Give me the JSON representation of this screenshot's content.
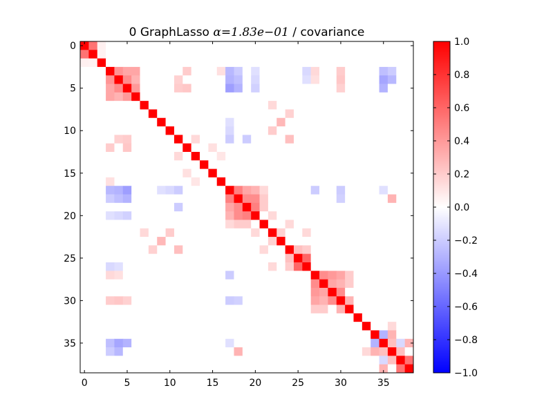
{
  "chart_data": {
    "type": "heatmap",
    "title": {
      "prefix": "0 GraphLasso ",
      "alpha_symbol": "α",
      "alpha_value": "=1.83e−01",
      "suffix": " / covariance"
    },
    "xlabel": "",
    "ylabel": "",
    "n": 39,
    "x_ticks": [
      "0",
      "5",
      "10",
      "15",
      "20",
      "25",
      "30",
      "35"
    ],
    "y_ticks": [
      "0",
      "5",
      "10",
      "15",
      "20",
      "25",
      "30",
      "35"
    ],
    "x_tick_values": [
      0,
      5,
      10,
      15,
      20,
      25,
      30,
      35
    ],
    "y_tick_values": [
      0,
      5,
      10,
      15,
      20,
      25,
      30,
      35
    ],
    "colormap": "bwr",
    "vmin": -1.0,
    "vmax": 1.0,
    "colorbar": {
      "ticks": [
        "1.0",
        "0.8",
        "0.6",
        "0.4",
        "0.2",
        "0.0",
        "−0.2",
        "−0.4",
        "−0.6",
        "−0.8",
        "−1.0"
      ],
      "tick_values": [
        1.0,
        0.8,
        0.6,
        0.4,
        0.2,
        0.0,
        -0.2,
        -0.4,
        -0.6,
        -0.8,
        -1.0
      ]
    },
    "diagonal_value": 1.0,
    "values_note_hidden": "",
    "matrix_values_upper": [
      [
        0,
        1,
        0.55
      ],
      [
        0,
        2,
        0.06
      ],
      [
        1,
        2,
        0.05
      ],
      [
        3,
        4,
        0.42
      ],
      [
        3,
        5,
        0.35
      ],
      [
        3,
        6,
        0.35
      ],
      [
        4,
        5,
        0.45
      ],
      [
        4,
        6,
        0.3
      ],
      [
        5,
        6,
        0.4
      ],
      [
        3,
        17,
        -0.28
      ],
      [
        4,
        17,
        -0.3
      ],
      [
        5,
        17,
        -0.38
      ],
      [
        3,
        18,
        -0.2
      ],
      [
        4,
        18,
        -0.25
      ],
      [
        5,
        18,
        -0.3
      ],
      [
        3,
        12,
        0.2
      ],
      [
        3,
        16,
        0.12
      ],
      [
        4,
        11,
        0.18
      ],
      [
        5,
        11,
        0.2
      ],
      [
        5,
        12,
        0.22
      ],
      [
        3,
        35,
        -0.25
      ],
      [
        4,
        35,
        -0.35
      ],
      [
        5,
        35,
        -0.3
      ],
      [
        3,
        36,
        -0.2
      ],
      [
        4,
        36,
        -0.28
      ],
      [
        3,
        27,
        0.15
      ],
      [
        4,
        27,
        0.12
      ],
      [
        3,
        30,
        0.2
      ],
      [
        4,
        30,
        0.22
      ],
      [
        5,
        30,
        0.18
      ],
      [
        3,
        20,
        -0.12
      ],
      [
        4,
        20,
        -0.15
      ],
      [
        5,
        20,
        -0.18
      ],
      [
        3,
        26,
        -0.15
      ],
      [
        4,
        26,
        -0.12
      ],
      [
        7,
        22,
        0.15
      ],
      [
        8,
        24,
        0.18
      ],
      [
        9,
        23,
        0.28
      ],
      [
        10,
        22,
        0.2
      ],
      [
        11,
        24,
        0.25
      ],
      [
        11,
        13,
        0.15
      ],
      [
        11,
        17,
        -0.2
      ],
      [
        11,
        19,
        -0.2
      ],
      [
        10,
        17,
        -0.15
      ],
      [
        9,
        17,
        -0.12
      ],
      [
        17,
        18,
        0.5
      ],
      [
        17,
        19,
        0.35
      ],
      [
        17,
        20,
        0.3
      ],
      [
        18,
        19,
        0.45
      ],
      [
        18,
        20,
        0.45
      ],
      [
        19,
        20,
        0.5
      ],
      [
        18,
        21,
        0.2
      ],
      [
        19,
        21,
        0.2
      ],
      [
        17,
        21,
        0.15
      ],
      [
        17,
        27,
        -0.2
      ],
      [
        17,
        30,
        -0.2
      ],
      [
        18,
        30,
        -0.18
      ],
      [
        17,
        35,
        -0.12
      ],
      [
        18,
        36,
        0.3
      ],
      [
        27,
        28,
        0.45
      ],
      [
        27,
        29,
        0.4
      ],
      [
        28,
        29,
        0.35
      ],
      [
        27,
        30,
        0.35
      ],
      [
        28,
        30,
        0.3
      ],
      [
        29,
        30,
        0.45
      ],
      [
        27,
        31,
        0.2
      ],
      [
        28,
        31,
        0.2
      ],
      [
        30,
        31,
        0.3
      ],
      [
        34,
        35,
        -0.3
      ],
      [
        34,
        36,
        0.3
      ],
      [
        35,
        36,
        0.25
      ],
      [
        36,
        37,
        0.25
      ],
      [
        37,
        38,
        0.55
      ],
      [
        35,
        38,
        0.3
      ],
      [
        35,
        37,
        -0.15
      ],
      [
        33,
        36,
        0.15
      ],
      [
        25,
        26,
        0.6
      ],
      [
        24,
        25,
        0.25
      ],
      [
        24,
        26,
        0.2
      ],
      [
        22,
        23,
        0.18
      ],
      [
        20,
        22,
        0.15
      ],
      [
        21,
        24,
        0.15
      ],
      [
        22,
        26,
        0.15
      ],
      [
        12,
        15,
        0.12
      ],
      [
        13,
        16,
        0.1
      ]
    ]
  }
}
